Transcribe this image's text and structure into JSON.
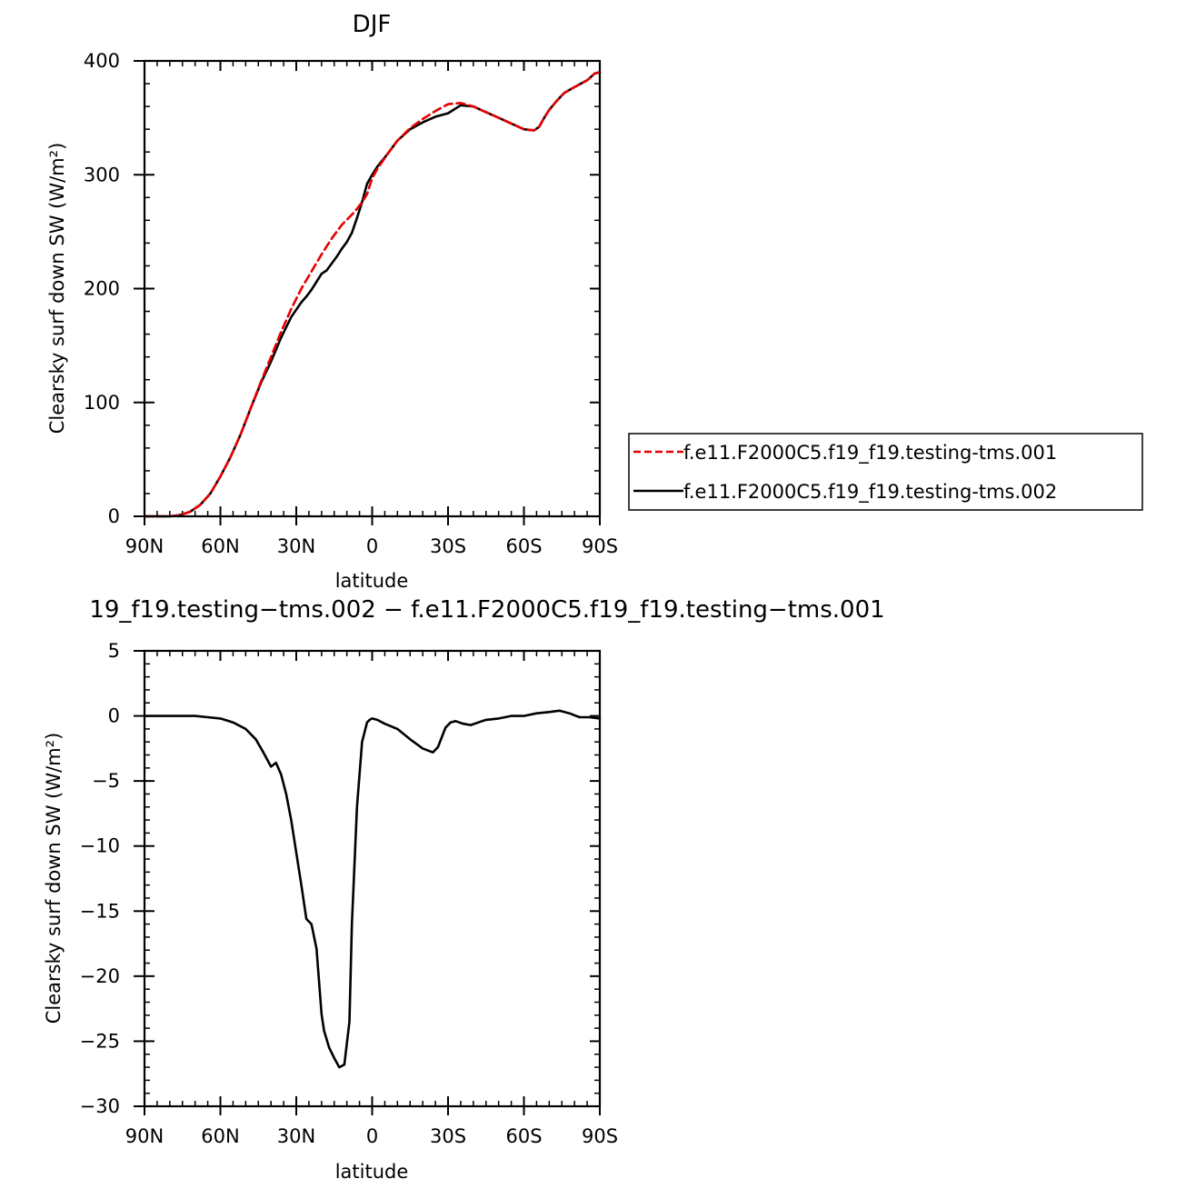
{
  "chart_data": [
    {
      "type": "line",
      "title": "DJF",
      "xlabel": "latitude",
      "ylabel": "Clearsky surf down SW (W/m²)",
      "xlim": [
        90,
        -90
      ],
      "ylim": [
        0,
        400
      ],
      "x_ticks": [
        90,
        60,
        30,
        0,
        -30,
        -60,
        -90
      ],
      "x_tick_labels": [
        "90N",
        "60N",
        "30N",
        "0",
        "30S",
        "60S",
        "90S"
      ],
      "y_ticks": [
        0,
        100,
        200,
        300,
        400
      ],
      "y_tick_labels": [
        "0",
        "100",
        "200",
        "300",
        "400"
      ],
      "legend_position": "right",
      "series": [
        {
          "name": "f.e11.F2000C5.f19_f19.testing-tms.001",
          "color": "#e60000",
          "dash": "dashed",
          "x": [
            90,
            85,
            80,
            76,
            72,
            68,
            64,
            60,
            56,
            52,
            48,
            44,
            40,
            36,
            32,
            28,
            24,
            20,
            16,
            12,
            8,
            6,
            4,
            2,
            0,
            -2,
            -6,
            -10,
            -15,
            -20,
            -25,
            -30,
            -35,
            -40,
            -45,
            -50,
            -55,
            -60,
            -64,
            -66,
            -68,
            -70,
            -73,
            -76,
            -80,
            -85,
            -88,
            -90
          ],
          "values": [
            0,
            0,
            0,
            1,
            4,
            10,
            20,
            35,
            52,
            72,
            95,
            118,
            140,
            162,
            182,
            200,
            215,
            230,
            244,
            256,
            265,
            270,
            276,
            283,
            297,
            305,
            318,
            330,
            341,
            349,
            356,
            362,
            363,
            360,
            355,
            350,
            345,
            340,
            339,
            342,
            350,
            357,
            365,
            372,
            377,
            383,
            389,
            390
          ]
        },
        {
          "name": "f.e11.F2000C5.f19_f19.testing-tms.002",
          "color": "#000000",
          "dash": "solid",
          "x": [
            90,
            85,
            80,
            76,
            72,
            68,
            64,
            60,
            56,
            52,
            48,
            44,
            40,
            36,
            32,
            28,
            26,
            24,
            22,
            20,
            18,
            16,
            14,
            12,
            10,
            8,
            6,
            4,
            2,
            0,
            -2,
            -6,
            -10,
            -15,
            -20,
            -25,
            -30,
            -35,
            -40,
            -45,
            -50,
            -55,
            -60,
            -64,
            -66,
            -68,
            -70,
            -73,
            -76,
            -80,
            -85,
            -88,
            -90
          ],
          "values": [
            0,
            0,
            0,
            1,
            4,
            10,
            20,
            35,
            52,
            72,
            95,
            117,
            136,
            157,
            175,
            188,
            193,
            199,
            206,
            213,
            216,
            222,
            228,
            235,
            241,
            249,
            262,
            276,
            292,
            300,
            307,
            318,
            330,
            340,
            346,
            351,
            354,
            361,
            360,
            355,
            350,
            345,
            340,
            339,
            342,
            350,
            357,
            365,
            372,
            377,
            383,
            389,
            390
          ]
        }
      ]
    },
    {
      "type": "line",
      "title": "19_f19.testing−tms.002 − f.e11.F2000C5.f19_f19.testing−tms.001",
      "xlabel": "latitude",
      "ylabel": "Clearsky surf down SW (W/m²)",
      "xlim": [
        90,
        -90
      ],
      "ylim": [
        -30,
        5
      ],
      "x_ticks": [
        90,
        60,
        30,
        0,
        -30,
        -60,
        -90
      ],
      "x_tick_labels": [
        "90N",
        "60N",
        "30N",
        "0",
        "30S",
        "60S",
        "90S"
      ],
      "y_ticks": [
        5,
        0,
        -5,
        -10,
        -15,
        -20,
        -25,
        -30
      ],
      "y_tick_labels": [
        "5",
        "0",
        "−5",
        "−10",
        "−15",
        "−20",
        "−25",
        "−30"
      ],
      "series": [
        {
          "color": "#000000",
          "dash": "solid",
          "x": [
            90,
            80,
            70,
            65,
            60,
            55,
            50,
            46,
            43,
            40,
            38,
            36,
            34,
            32,
            30,
            28,
            26,
            24,
            22,
            20,
            19,
            17,
            15,
            13,
            11,
            9,
            8,
            6,
            4,
            2,
            1,
            0,
            -2,
            -5,
            -10,
            -15,
            -20,
            -24,
            -26,
            -29,
            -31,
            -33,
            -36,
            -39,
            -42,
            -45,
            -50,
            -55,
            -60,
            -65,
            -70,
            -74,
            -78,
            -82,
            -86,
            -90
          ],
          "values": [
            0,
            0,
            0,
            -0.1,
            -0.2,
            -0.5,
            -1.0,
            -1.8,
            -2.8,
            -3.9,
            -3.6,
            -4.5,
            -6.0,
            -8.0,
            -10.5,
            -13.0,
            -15.6,
            -16.0,
            -17.9,
            -22.9,
            -24.2,
            -25.5,
            -26.3,
            -27.0,
            -26.8,
            -23.5,
            -16.0,
            -7.0,
            -2.0,
            -0.5,
            -0.3,
            -0.2,
            -0.3,
            -0.6,
            -1.0,
            -1.8,
            -2.5,
            -2.8,
            -2.4,
            -0.9,
            -0.5,
            -0.4,
            -0.6,
            -0.7,
            -0.5,
            -0.3,
            -0.2,
            0,
            0,
            0.2,
            0.3,
            0.4,
            0.2,
            -0.1,
            -0.1,
            -0.2
          ]
        }
      ]
    }
  ]
}
